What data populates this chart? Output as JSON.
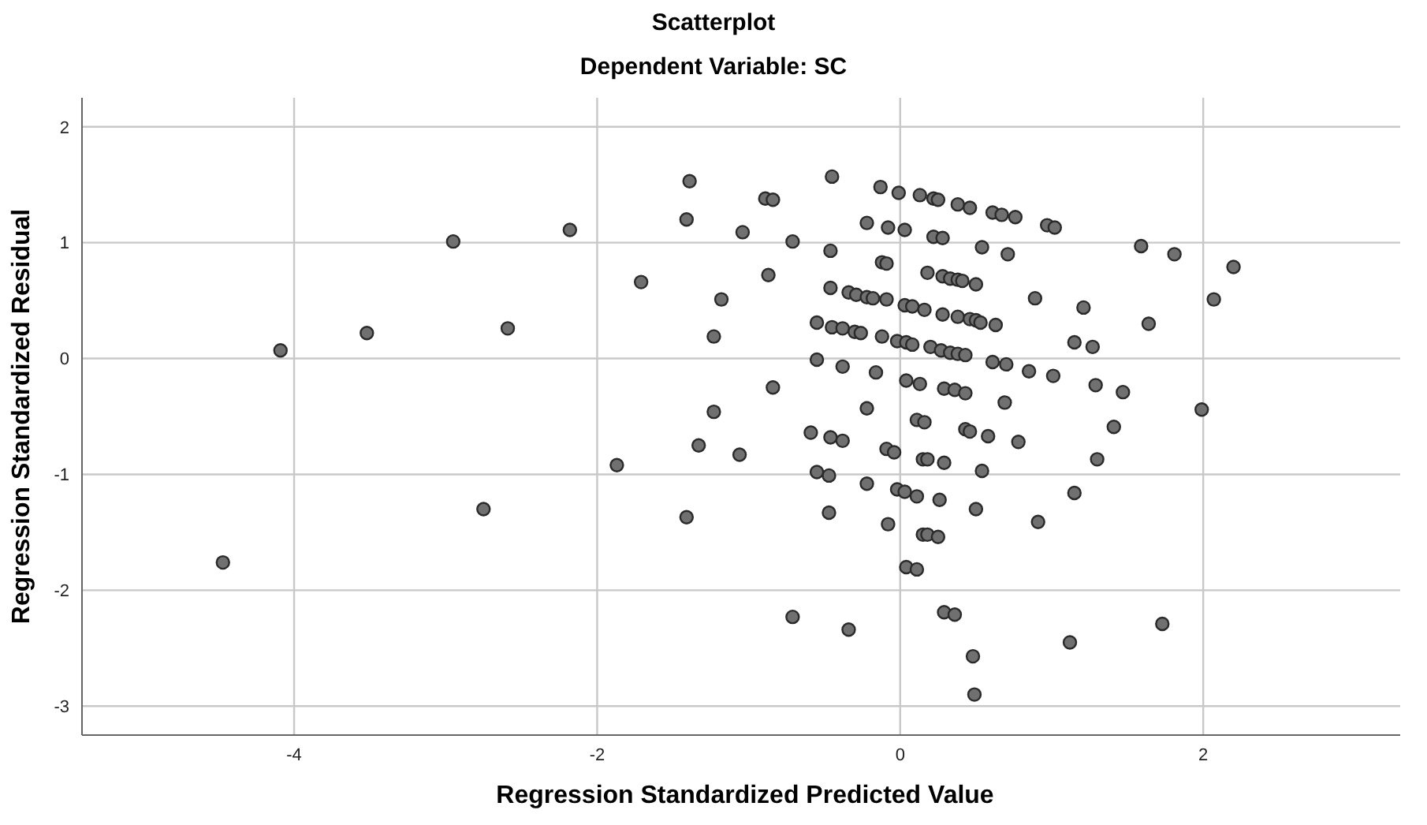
{
  "chart_data": {
    "type": "scatter",
    "title": "Scatterplot",
    "subtitle": "Dependent Variable: SC",
    "xlabel": "Regression Standardized Predicted Value",
    "ylabel": "Regression Standardized Residual",
    "xlim": [
      -5.4,
      3.3
    ],
    "ylim": [
      -3.25,
      2.25
    ],
    "xticks": [
      -4,
      -2,
      0,
      2
    ],
    "yticks": [
      -3,
      -2,
      -1,
      0,
      1,
      2
    ],
    "grid": true,
    "marker": "circle",
    "series": [
      {
        "color": "#707070",
        "x": [
          -4.09,
          -4.47,
          -3.52,
          -2.95,
          -2.18,
          -1.71,
          -2.59,
          -1.87,
          -2.75,
          -1.39,
          -1.41,
          -0.89,
          -0.84,
          -1.04,
          -0.45,
          -0.13,
          -0.01,
          -0.22,
          -0.08,
          0.03,
          -0.71,
          -0.46,
          -0.12,
          -0.09,
          -0.87,
          -1.18,
          -0.46,
          -0.34,
          -0.29,
          -0.22,
          -0.18,
          -0.09,
          0.03,
          0.08,
          -1.23,
          -0.55,
          -0.45,
          -0.38,
          -0.3,
          -0.26,
          -0.12,
          -0.02,
          0.04,
          0.08,
          -0.55,
          -0.38,
          -0.16,
          0.04,
          0.13,
          -0.84,
          -1.23,
          -0.22,
          0.11,
          -1.33,
          -1.06,
          -0.59,
          -0.46,
          -0.38,
          -0.09,
          -0.04,
          0.15,
          -0.55,
          -0.47,
          -0.22,
          -0.02,
          0.03,
          0.11,
          -1.41,
          -0.47,
          -0.08,
          0.15,
          0.04,
          0.11,
          -0.71,
          -0.34,
          0.13,
          0.22,
          0.25,
          0.38,
          0.46,
          0.61,
          0.67,
          0.76,
          0.97,
          1.02,
          0.22,
          0.28,
          0.54,
          0.71,
          1.59,
          1.81,
          0.18,
          0.28,
          0.33,
          0.38,
          0.41,
          0.5,
          0.89,
          1.21,
          1.64,
          0.16,
          0.28,
          0.38,
          0.46,
          0.5,
          0.53,
          0.63,
          0.2,
          0.27,
          0.33,
          0.38,
          0.43,
          1.15,
          1.27,
          0.61,
          0.7,
          0.85,
          1.01,
          0.29,
          0.36,
          0.43,
          1.29,
          1.47,
          0.69,
          0.16,
          0.43,
          0.46,
          0.58,
          0.78,
          1.41,
          0.18,
          0.29,
          0.54,
          1.3,
          1.99,
          2.2,
          2.07,
          1.15,
          0.91,
          0.5,
          0.26,
          0.18,
          0.25,
          0.29,
          0.36,
          0.48,
          0.49,
          1.12,
          1.73
        ],
        "values": [
          0.07,
          -1.76,
          0.22,
          1.01,
          1.11,
          0.66,
          0.26,
          -0.92,
          -1.3,
          1.53,
          1.2,
          1.38,
          1.37,
          1.09,
          1.57,
          1.48,
          1.43,
          1.17,
          1.13,
          1.11,
          1.01,
          0.93,
          0.83,
          0.82,
          0.72,
          0.51,
          0.61,
          0.57,
          0.55,
          0.53,
          0.52,
          0.51,
          0.46,
          0.45,
          0.19,
          0.31,
          0.27,
          0.26,
          0.23,
          0.22,
          0.19,
          0.15,
          0.14,
          0.12,
          -0.01,
          -0.07,
          -0.12,
          -0.19,
          -0.22,
          -0.25,
          -0.46,
          -0.43,
          -0.53,
          -0.75,
          -0.83,
          -0.64,
          -0.68,
          -0.71,
          -0.78,
          -0.81,
          -0.87,
          -0.98,
          -1.01,
          -1.08,
          -1.13,
          -1.15,
          -1.19,
          -1.37,
          -1.33,
          -1.43,
          -1.52,
          -1.8,
          -1.82,
          -2.23,
          -2.34,
          1.41,
          1.38,
          1.37,
          1.33,
          1.3,
          1.26,
          1.24,
          1.22,
          1.15,
          1.13,
          1.05,
          1.04,
          0.96,
          0.9,
          0.97,
          0.9,
          0.74,
          0.71,
          0.69,
          0.68,
          0.67,
          0.64,
          0.52,
          0.44,
          0.3,
          0.42,
          0.38,
          0.36,
          0.34,
          0.33,
          0.31,
          0.29,
          0.1,
          0.07,
          0.05,
          0.04,
          0.03,
          0.14,
          0.1,
          -0.03,
          -0.05,
          -0.11,
          -0.15,
          -0.26,
          -0.27,
          -0.3,
          -0.23,
          -0.29,
          -0.38,
          -0.55,
          -0.61,
          -0.63,
          -0.67,
          -0.72,
          -0.59,
          -0.87,
          -0.9,
          -0.97,
          -0.87,
          -0.44,
          0.79,
          0.51,
          -1.16,
          -1.41,
          -1.3,
          -1.22,
          -1.52,
          -1.54,
          -2.19,
          -2.21,
          -2.57,
          -2.9,
          -2.45,
          -2.29
        ]
      }
    ]
  }
}
